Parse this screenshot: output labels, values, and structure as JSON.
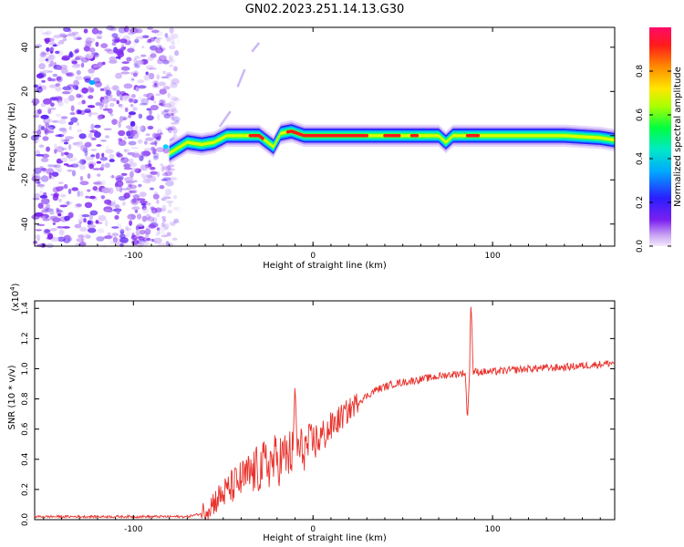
{
  "figure_title": "GN02.2023.251.14.13.G30",
  "chart_data": [
    {
      "type": "heatmap",
      "title": "",
      "xlabel": "Height of straight line (km)",
      "ylabel": "Frequency (Hz)",
      "xlim": [
        -155,
        168
      ],
      "ylim": [
        -50,
        49
      ],
      "xticks": [
        -100,
        0,
        100
      ],
      "yticks": [
        -40,
        -20,
        0,
        20,
        40
      ],
      "colorbar": {
        "label": "Normalized spectral amplitude",
        "range": [
          0,
          1
        ],
        "ticks": [
          "0.0",
          "0.2",
          "0.4",
          "0.6",
          "0.8"
        ],
        "colormap": "rainbow (purple to red)"
      },
      "ridge_line": {
        "x": [
          -80,
          -70,
          -62,
          -55,
          -48,
          -40,
          -30,
          -22,
          -18,
          -12,
          -5,
          0,
          20,
          40,
          60,
          70,
          74,
          78,
          85,
          100,
          120,
          140,
          160,
          168
        ],
        "y": [
          -8,
          -3,
          -4,
          -3,
          0,
          0,
          0,
          -5,
          1,
          2,
          0,
          0,
          0,
          0,
          0,
          0,
          -3,
          0,
          0,
          0,
          0,
          0,
          -1,
          -2
        ]
      },
      "noise_region_x": [
        -155,
        -75
      ],
      "grid": false
    },
    {
      "type": "line",
      "title": "",
      "xlabel": "Height of straight line (km)",
      "ylabel": "SNR (10 * v/v)",
      "yscale_label": "(x10",
      "yscale_exp": "4",
      "xlim": [
        -155,
        168
      ],
      "ylim": [
        0,
        1.45
      ],
      "xticks": [
        -100,
        0,
        100
      ],
      "yticks": [
        "0.0",
        "0.2",
        "0.4",
        "0.6",
        "0.8",
        "1.0",
        "1.2",
        "1.4"
      ],
      "color": "#e8322c",
      "trend": {
        "x": [
          -155,
          -100,
          -70,
          -62,
          -55,
          -45,
          -35,
          -25,
          -15,
          -5,
          5,
          15,
          25,
          35,
          45,
          55,
          65,
          75,
          83,
          90,
          100,
          120,
          140,
          160,
          168
        ],
        "y": [
          0.02,
          0.02,
          0.02,
          0.04,
          0.12,
          0.22,
          0.3,
          0.37,
          0.42,
          0.47,
          0.55,
          0.67,
          0.78,
          0.86,
          0.9,
          0.92,
          0.94,
          0.96,
          0.97,
          0.98,
          0.98,
          1.0,
          1.01,
          1.03,
          1.04
        ]
      },
      "spikes": [
        {
          "x": -10,
          "y": 0.91
        },
        {
          "x": 88,
          "y": 1.45
        },
        {
          "x": 86,
          "y": 0.65
        }
      ],
      "grid": false
    }
  ]
}
